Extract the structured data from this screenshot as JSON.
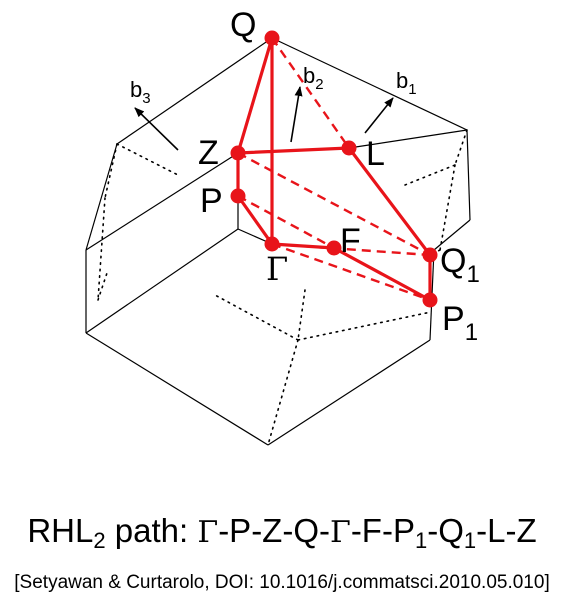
{
  "points": {
    "Q": {
      "main": "Q",
      "sub": ""
    },
    "L": {
      "main": "L",
      "sub": ""
    },
    "Z": {
      "main": "Z",
      "sub": ""
    },
    "P": {
      "main": "P",
      "sub": ""
    },
    "F": {
      "main": "F",
      "sub": ""
    },
    "Gamma": {
      "main": "Γ",
      "sub": ""
    },
    "Q1": {
      "main": "Q",
      "sub": "1"
    },
    "P1": {
      "main": "P",
      "sub": "1"
    }
  },
  "vectors": {
    "b1": {
      "main": "b",
      "sub": "1"
    },
    "b2": {
      "main": "b",
      "sub": "2"
    },
    "b3": {
      "main": "b",
      "sub": "3"
    }
  },
  "caption": {
    "lattice": "RHL",
    "lattice_sub": "2",
    "path_label": " path: ",
    "path_segments": [
      {
        "text": "Γ",
        "sub": "",
        "serif": true
      },
      {
        "text": "-P-Z-Q-",
        "sub": "",
        "serif": false
      },
      {
        "text": "Γ",
        "sub": "",
        "serif": true
      },
      {
        "text": "-F-P",
        "sub": "1",
        "serif": false
      },
      {
        "text": "-Q",
        "sub": "1",
        "serif": false
      },
      {
        "text": "-L-Z",
        "sub": "",
        "serif": false
      }
    ]
  },
  "citation": "[Setyawan & Curtarolo, DOI: 10.1016/j.commatsci.2010.05.010]",
  "colors": {
    "path": "#e8141a",
    "edge": "#000000"
  }
}
